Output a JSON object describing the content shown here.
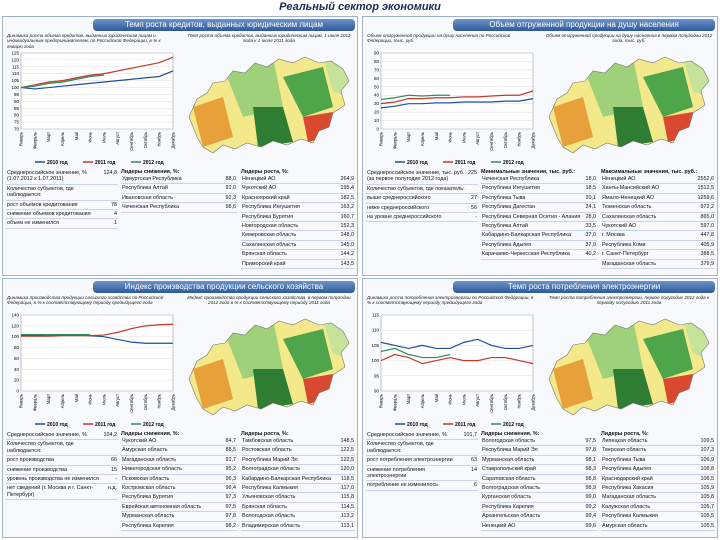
{
  "title": "Реальный сектор экономики",
  "panels": [
    {
      "title": "Темп роста кредитов, выданных юридическим лицам",
      "chart": {
        "type": "line",
        "caption": "Динамика роста объема кредитов, выданных юридическим лицам и индивидуальным предпринимателям, по Российской Федерации, в % к январю года",
        "categories": [
          "Январь",
          "Февраль",
          "Март",
          "Апрель",
          "Май",
          "Июнь",
          "Июль",
          "Август",
          "Сентябрь",
          "Октябрь",
          "Ноябрь",
          "Декабрь"
        ],
        "series": [
          {
            "name": "2010 год",
            "color": "#1f4e9c",
            "values": [
              100,
              99,
              100,
              101,
              102,
              103,
              104,
              105,
              106,
              107,
              108,
              112
            ]
          },
          {
            "name": "2011 год",
            "color": "#c0392b",
            "values": [
              100,
              102,
              104,
              105,
              107,
              109,
              110,
              112,
              114,
              116,
              118,
              122
            ]
          },
          {
            "name": "2012 год",
            "color": "#2e8b57",
            "values": [
              100,
              101,
              103,
              104,
              106,
              108,
              109,
              null,
              null,
              null,
              null,
              null
            ]
          }
        ],
        "ylim": [
          70,
          125
        ],
        "yticks": [
          70,
          75,
          80,
          85,
          90,
          95,
          100,
          105,
          110,
          115,
          120,
          125
        ]
      },
      "map_caption": "Темп роста объема кредитов, выданных юридическим лицам, 1 июля 2012 года к 1 июля 2011 года",
      "stats": [
        {
          "label": "Среднероссийское значение, % (1.07.2012 к 1.07.2011)",
          "value": "124,8"
        },
        {
          "label": "Количество субъектов, где наблюдается:",
          "value": ""
        },
        {
          "label": "рост объемов кредитования",
          "value": "78"
        },
        {
          "label": "снижение объемов кредитования",
          "value": "4"
        },
        {
          "label": "объем не изменился",
          "value": "1"
        }
      ],
      "lists": [
        {
          "heading": "Лидеры снижения, %:",
          "rows": [
            [
              "Удмуртская Республика",
              "88,0"
            ],
            [
              "Республика Алтай",
              "91,0"
            ],
            [
              "Ивановская область",
              "92,3"
            ],
            [
              "Чеченская Республика",
              "98,6"
            ]
          ]
        },
        {
          "heading": "Лидеры роста, %:",
          "rows": [
            [
              "Ненецкий АО",
              "264,9"
            ],
            [
              "Чукотский АО",
              "195,4"
            ],
            [
              "Красноярский край",
              "182,5"
            ],
            [
              "Республика Ингушетия",
              "163,2"
            ],
            [
              "Республика Бурятия",
              "160,7"
            ],
            [
              "Новгородская область",
              "152,3"
            ],
            [
              "Кемеровская область",
              "148,0"
            ],
            [
              "Сахалинская область",
              "145,0"
            ],
            [
              "Брянская область",
              "144,2"
            ],
            [
              "Приморский край",
              "143,5"
            ]
          ]
        }
      ]
    },
    {
      "title": "Объем отгруженной продукции на душу населения",
      "chart": {
        "type": "line",
        "caption": "Объем отгруженной продукции на душу населения по Российской Федерации, тыс. руб.",
        "categories": [
          "Январь",
          "Февраль",
          "Март",
          "Апрель",
          "Май",
          "Июнь",
          "Июль",
          "Август",
          "Сентябрь",
          "Октябрь",
          "Ноябрь",
          "Декабрь"
        ],
        "series": [
          {
            "name": "2010 год",
            "color": "#1f4e9c",
            "values": [
              25,
              27,
              30,
              30,
              31,
              31,
              32,
              32,
              32,
              33,
              33,
              36
            ]
          },
          {
            "name": "2011 год",
            "color": "#c0392b",
            "values": [
              30,
              32,
              36,
              36,
              37,
              37,
              38,
              38,
              39,
              40,
              40,
              45
            ]
          },
          {
            "name": "2012 год",
            "color": "#2e8b57",
            "values": [
              35,
              37,
              40,
              39,
              40,
              40,
              null,
              null,
              null,
              null,
              null,
              null
            ]
          }
        ],
        "ylim": [
          0,
          90
        ],
        "yticks": [
          0,
          10,
          20,
          30,
          40,
          50,
          60,
          70,
          80,
          90
        ]
      },
      "map_caption": "Объем отгруженной продукции на душу населения в первом полугодии 2012 года, тыс. руб.",
      "stats": [
        {
          "label": "Среднероссийское значение, тыс. руб. (за первое полугодие 2012 года)",
          "value": "225"
        },
        {
          "label": "Количество субъектов, где показатель:",
          "value": ""
        },
        {
          "label": "выше среднероссийского",
          "value": "27"
        },
        {
          "label": "ниже среднероссийского",
          "value": "56"
        },
        {
          "label": "на уровне среднероссийского",
          "value": "-"
        }
      ],
      "lists": [
        {
          "heading": "Минимальные значения, тыс. руб.:",
          "rows": [
            [
              "Чеченская Республика",
              "18,0"
            ],
            [
              "Республика Ингушетия",
              "18,5"
            ],
            [
              "Республика Тыва",
              "20,1"
            ],
            [
              "Республика Дагестан",
              "24,1"
            ],
            [
              "Республика Северная Осетия - Алания",
              "28,0"
            ],
            [
              "Республика Алтай",
              "33,5"
            ],
            [
              "Кабардино-Балкарская Республика",
              "37,0"
            ],
            [
              "Республика Адыгея",
              "37,9"
            ],
            [
              "Карачаево-Черкесская Республика",
              "40,2"
            ]
          ]
        },
        {
          "heading": "Максимальные значения, тыс. руб.:",
          "rows": [
            [
              "Ненецкий АО",
              "2552,6"
            ],
            [
              "Ханты-Мансийский АО",
              "1512,5"
            ],
            [
              "Ямало-Ненецкий АО",
              "1259,6"
            ],
            [
              "Тюменская область",
              "972,2"
            ],
            [
              "Сахалинская область",
              "865,0"
            ],
            [
              "Чукотский АО",
              "597,0"
            ],
            [
              "г. Москва",
              "447,8"
            ],
            [
              "Республика Коми",
              "405,9"
            ],
            [
              "г. Санкт-Петербург",
              "388,5"
            ],
            [
              "Магаданская область",
              "379,9"
            ]
          ]
        }
      ]
    },
    {
      "title": "Индекс производства продукции сельского хозяйства",
      "chart": {
        "type": "line",
        "caption": "Динамика производства продукции сельского хозяйства по Российской Федерации, в % к соответствующему периоду предыдущего года",
        "categories": [
          "Январь",
          "Февраль",
          "Март",
          "Апрель",
          "Май",
          "Июнь",
          "Июль",
          "Август",
          "Сентябрь",
          "Октябрь",
          "Ноябрь",
          "Декабрь"
        ],
        "series": [
          {
            "name": "2010 год",
            "color": "#1f4e9c",
            "values": [
              102,
              102,
              103,
              103,
              103,
              102,
              100,
              95,
              90,
              88,
              88,
              88
            ]
          },
          {
            "name": "2011 год",
            "color": "#c0392b",
            "values": [
              101,
              101,
              101,
              102,
              102,
              102,
              103,
              108,
              115,
              120,
              122,
              123
            ]
          },
          {
            "name": "2012 год",
            "color": "#2e8b57",
            "values": [
              104,
              104,
              104,
              104,
              104,
              104,
              null,
              null,
              null,
              null,
              null,
              null
            ]
          }
        ],
        "ylim": [
          0,
          140
        ],
        "yticks": [
          0,
          20,
          40,
          60,
          80,
          100,
          120,
          140
        ]
      },
      "map_caption": "Индекс производства продукции сельского хозяйства, в первом полугодии 2012 года в % к соответствующему периоду 2011 года",
      "stats": [
        {
          "label": "Среднероссийское значение, %",
          "value": "104,2"
        },
        {
          "label": "Количество субъектов, где наблюдается:",
          "value": ""
        },
        {
          "label": "рост производства",
          "value": "66"
        },
        {
          "label": "снижение производства",
          "value": "15"
        },
        {
          "label": "уровень производства не изменился",
          "value": "-"
        },
        {
          "label": "нет сведений (г. Москва и г. Санкт-Петербург)",
          "value": "н.д."
        }
      ],
      "lists": [
        {
          "heading": "Лидеры снижения, %:",
          "rows": [
            [
              "Чукотский АО",
              "84,7"
            ],
            [
              "Амурская область",
              "88,5"
            ],
            [
              "Магаданская область",
              "91,7"
            ],
            [
              "Нижегородская область",
              "95,2"
            ],
            [
              "Псковская область",
              "96,3"
            ],
            [
              "Костромская область",
              "96,4"
            ],
            [
              "Республика Бурятия",
              "97,3"
            ],
            [
              "Еврейская автономная область",
              "97,5"
            ],
            [
              "Мурманская область",
              "97,8"
            ],
            [
              "Республика Карелия",
              "98,2"
            ]
          ]
        },
        {
          "heading": "Лидеры роста, %:",
          "rows": [
            [
              "Тамбовская область",
              "148,5"
            ],
            [
              "Ростовская область",
              "122,5"
            ],
            [
              "Республика Марий Эл",
              "122,5"
            ],
            [
              "Волгоградская область",
              "120,0"
            ],
            [
              "Кабардино-Балкарская Республика",
              "118,5"
            ],
            [
              "Республика Калмыкия",
              "117,0"
            ],
            [
              "Ульяновская область",
              "115,8"
            ],
            [
              "Брянская область",
              "114,5"
            ],
            [
              "Вологодская область",
              "113,2"
            ],
            [
              "Владимирская область",
              "113,1"
            ]
          ]
        }
      ]
    },
    {
      "title": "Темп роста потребления электроэнергии",
      "chart": {
        "type": "line",
        "caption": "Динамика роста потребления электроэнергии по Российской Федерации, в % к соответствующему периоду предыдущего года",
        "categories": [
          "Январь",
          "Февраль",
          "Март",
          "Апрель",
          "Май",
          "Июнь",
          "Июль",
          "Август",
          "Сентябрь",
          "Октябрь",
          "Ноябрь",
          "Декабрь"
        ],
        "series": [
          {
            "name": "2010 год",
            "color": "#1f4e9c",
            "values": [
              106,
              105,
              104,
              105,
              104,
              104,
              106,
              107,
              105,
              104,
              104,
              105
            ]
          },
          {
            "name": "2011 год",
            "color": "#c0392b",
            "values": [
              100,
              102,
              101,
              99,
              100,
              101,
              100,
              100,
              101,
              101,
              100,
              99
            ]
          },
          {
            "name": "2012 год",
            "color": "#2e8b57",
            "values": [
              103,
              104,
              102,
              101,
              101,
              102,
              null,
              null,
              null,
              null,
              null,
              null
            ]
          }
        ],
        "ylim": [
          90,
          115
        ],
        "yticks": [
          90,
          95,
          100,
          105,
          110,
          115
        ]
      },
      "map_caption": "Темп роста потребления электроэнергии, первое полугодие 2012 года к первому полугодию 2011 года",
      "stats": [
        {
          "label": "Среднероссийское значение, %",
          "value": "101,7"
        },
        {
          "label": "Количество субъектов, где наблюдается:",
          "value": ""
        },
        {
          "label": "рост потребления электроэнергии",
          "value": "63"
        },
        {
          "label": "снижение потребления электроэнергии",
          "value": "14"
        },
        {
          "label": "потребление не изменилось",
          "value": "6"
        }
      ],
      "lists": [
        {
          "heading": "Лидеры снижения, %:",
          "rows": [
            [
              "Вологодская область",
              "97,5"
            ],
            [
              "Республика Марий Эл",
              "97,8"
            ],
            [
              "Мурманская область",
              "98,1"
            ],
            [
              "Ставропольский край",
              "98,3"
            ],
            [
              "Саратовская область",
              "98,8"
            ],
            [
              "Волгоградская область",
              "98,9"
            ],
            [
              "Курганская область",
              "99,0"
            ],
            [
              "Республика Карелия",
              "99,2"
            ],
            [
              "Архангельская область",
              "99,4"
            ],
            [
              "Ненецкий АО",
              "99,6"
            ]
          ]
        },
        {
          "heading": "Лидеры роста, %:",
          "rows": [
            [
              "Липецкая область",
              "109,5"
            ],
            [
              "Тверская область",
              "107,3"
            ],
            [
              "Республика Тыва",
              "106,9"
            ],
            [
              "Республика Адыгея",
              "106,8"
            ],
            [
              "Краснодарский край",
              "106,5"
            ],
            [
              "Республика Хакасия",
              "105,9"
            ],
            [
              "Магаданская область",
              "105,8"
            ],
            [
              "Калужская область",
              "105,7"
            ],
            [
              "Республика Калмыкия",
              "105,5"
            ],
            [
              "Амурская область",
              "105,5"
            ]
          ]
        }
      ]
    }
  ]
}
